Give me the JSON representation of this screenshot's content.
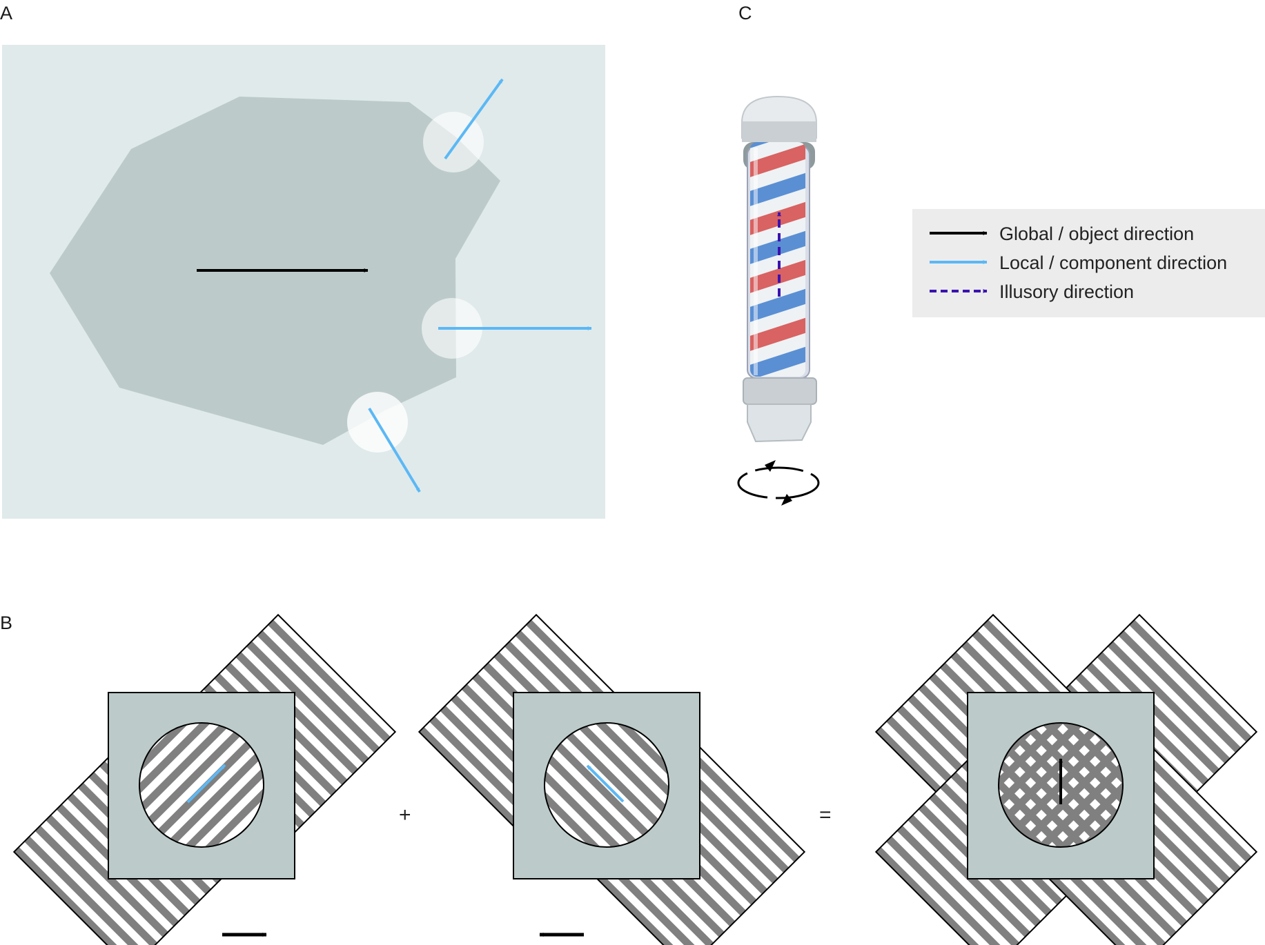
{
  "panels": {
    "a": {
      "label": "A"
    },
    "b": {
      "label": "B",
      "plus": "+",
      "equals": "="
    },
    "c": {
      "label": "C"
    }
  },
  "legend": [
    {
      "label": "Global / object direction",
      "color": "#000000",
      "style": "solid"
    },
    {
      "label": "Local / component direction",
      "color": "#5bb8f5",
      "style": "solid"
    },
    {
      "label": "Illusory direction",
      "color": "#3a12b0",
      "style": "dashed"
    }
  ],
  "colors": {
    "panel_a_background": "#e0eaeb",
    "object_fill": "#bccbca",
    "aperture_fill": "#ffffff",
    "grating_stripe": "#808080",
    "occluder_fill": "#bccbca",
    "pole_red": "#d96262",
    "pole_blue": "#5a8fd4"
  },
  "icons": {
    "rotation": "rotation-arrows-icon",
    "barber_pole": "barber-pole-illustration"
  }
}
